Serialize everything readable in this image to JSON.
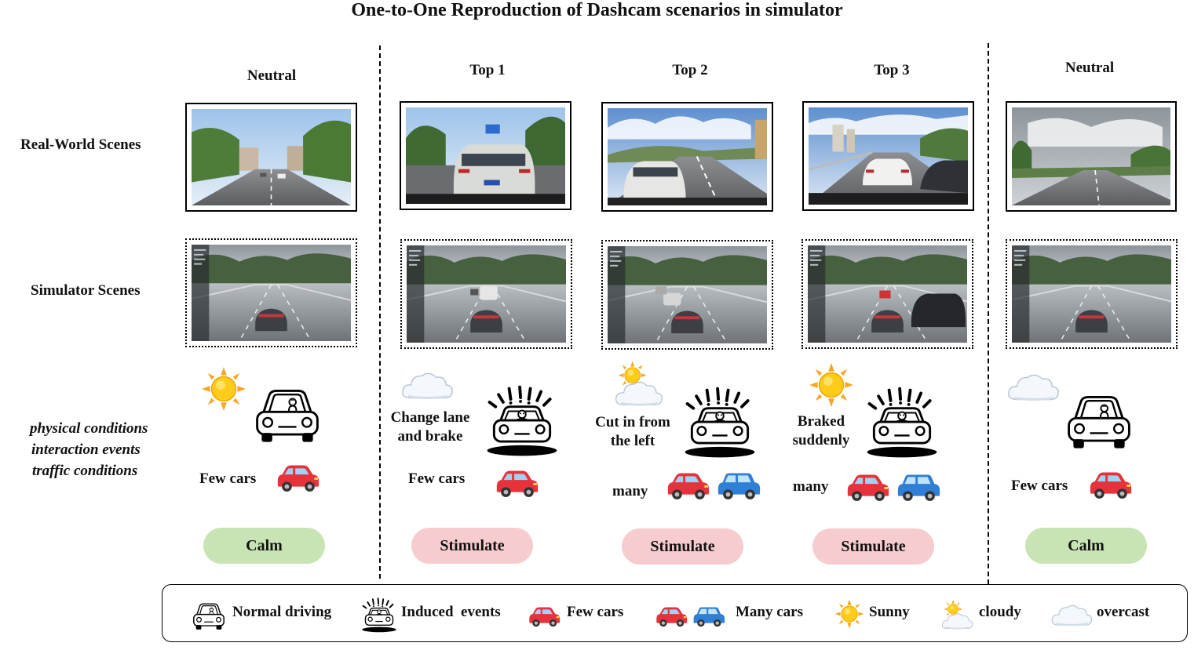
{
  "title": "One-to-One Reproduction of Dashcam scenarios in simulator",
  "row_labels": {
    "real": "Real-World Scenes",
    "sim": "Simulator Scenes",
    "cond1": "physical conditions",
    "cond2": "interaction events",
    "cond3": "traffic conditions"
  },
  "columns": [
    {
      "header": "Neutral",
      "event": "",
      "traffic": "Few cars",
      "emotion": "Calm"
    },
    {
      "header": "Top 1",
      "event_line1": "Change lane",
      "event_line2": "and brake",
      "traffic": "Few cars",
      "emotion": "Stimulate"
    },
    {
      "header": "Top 2",
      "event_line1": "Cut in from",
      "event_line2": "the left",
      "traffic": "many",
      "emotion": "Stimulate"
    },
    {
      "header": "Top 3",
      "event_line1": "Braked",
      "event_line2": "suddenly",
      "traffic": "many",
      "emotion": "Stimulate"
    },
    {
      "header": "Neutral",
      "event": "",
      "traffic": "Few cars",
      "emotion": "Calm"
    }
  ],
  "legend": {
    "normal": "Normal driving",
    "induced": "Induced  events",
    "few": "Few cars",
    "many": "Many cars",
    "sunny": "Sunny",
    "cloudy": "cloudy",
    "overcast": "overcast"
  },
  "icons": {
    "sunny": "sun-icon",
    "cloudy": "sun-behind-cloud-icon",
    "overcast": "cloud-icon",
    "normal": "normal-driving-car-icon",
    "induced": "alarmed-driver-car-icon",
    "few_cars": "red-car-icon",
    "many_cars": "red-and-blue-cars-icon"
  },
  "colors": {
    "calm": "#c9e4b4",
    "stimulate": "#f6cccf",
    "red_car": "#e5323b",
    "blue_car": "#2f7fd6"
  }
}
